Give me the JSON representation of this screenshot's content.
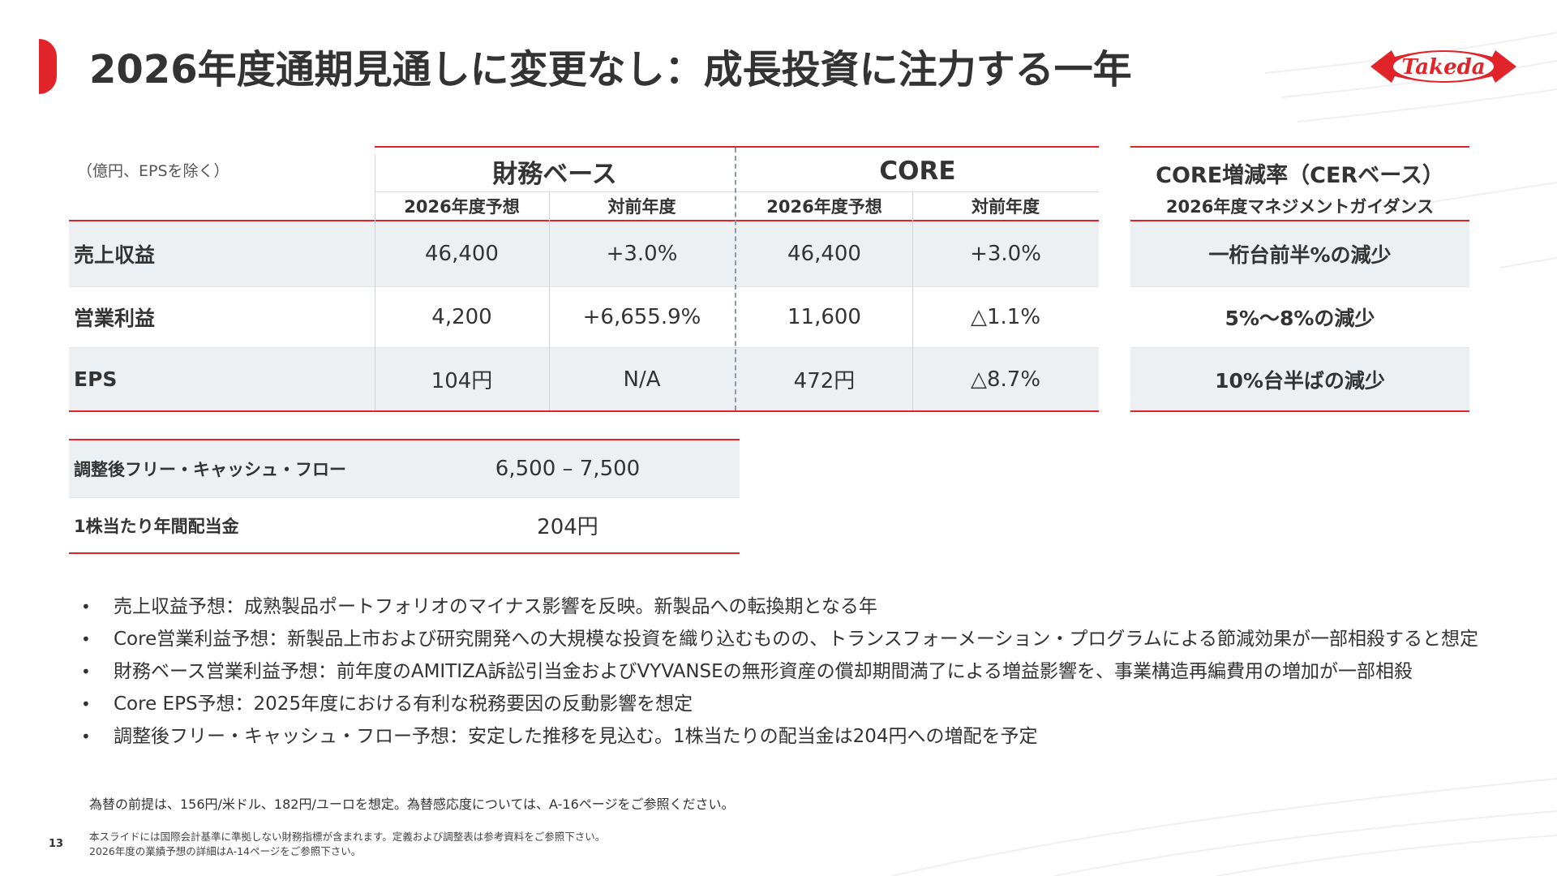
{
  "title": "2026年度通期見通しに変更なし：成長投資に注力する一年",
  "logo_text": "Takeda",
  "colors": {
    "accent": "#e1242a",
    "row_shade": "#edf0f3",
    "text": "#333333"
  },
  "main_table": {
    "unit_note": "（億円、EPSを除く）",
    "group_headers": [
      "財務ベース",
      "CORE"
    ],
    "sub_headers": [
      "2026年度予想",
      "対前年度",
      "2026年度予想",
      "対前年度"
    ],
    "rows": [
      {
        "label": "売上収益",
        "values": [
          "46,400",
          "+3.0%",
          "46,400",
          "+3.0%"
        ]
      },
      {
        "label": "営業利益",
        "values": [
          "4,200",
          "+6,655.9%",
          "11,600",
          "△1.1%"
        ]
      },
      {
        "label": "EPS",
        "values": [
          "104円",
          "N/A",
          "472円",
          "△8.7%"
        ]
      }
    ]
  },
  "guidance_table": {
    "header": "CORE増減率（CERベース）",
    "subheader": "2026年度マネジメントガイダンス",
    "rows": [
      "一桁台前半%の減少",
      "5%～8%の減少",
      "10%台半ばの減少"
    ]
  },
  "fcf_table": {
    "rows": [
      {
        "label": "調整後フリー・キャッシュ・フロー",
        "value": "6,500 – 7,500"
      },
      {
        "label": "1株当たり年間配当金",
        "value": "204円"
      }
    ]
  },
  "bullets": [
    "売上収益予想：成熟製品ポートフォリオのマイナス影響を反映。新製品への転換期となる年",
    "Core営業利益予想：新製品上市および研究開発への大規模な投資を織り込むものの、トランスフォーメーション・プログラムによる節減効果が一部相殺すると想定",
    "財務ベース営業利益予想：前年度のAMITIZA訴訟引当金およびVYVANSEの無形資産の償却期間満了による増益影響を、事業構造再編費用の増加が一部相殺",
    "Core EPS予想：2025年度における有利な税務要因の反動影響を想定",
    "調整後フリー・キャッシュ・フロー予想：安定した推移を見込む。1株当たりの配当金は204円への増配を予定"
  ],
  "footnotes": {
    "fx": "為替の前提は、156円/米ドル、182円/ユーロを想定。為替感応度については、A-16ページをご参照ください。",
    "line1": "本スライドには国際会計基準に準拠しない財務指標が含まれます。定義および調整表は参考資料をご参照下さい。",
    "line2": "2026年度の業績予想の詳細はA-14ページをご参照下さい。"
  },
  "page_number": "13"
}
